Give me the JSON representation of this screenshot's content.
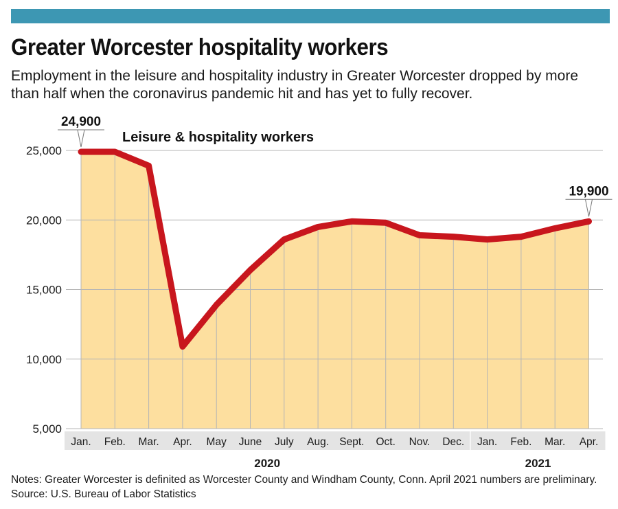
{
  "header": {
    "title": "Greater Worcester hospitality workers",
    "subtitle": "Employment in the leisure and hospitality industry in Greater Worcester dropped by more than half when the coronavirus pandemic hit and has yet to fully recover."
  },
  "colors": {
    "accent_bar": "#3d97b3",
    "line": "#c8161d",
    "area_fill": "#fddf9f",
    "grid": "#b5b5b5",
    "tick_band": "#e4e4e4"
  },
  "chart_data": {
    "type": "area",
    "title": "Greater Worcester hospitality workers",
    "categories": [
      "Jan.",
      "Feb.",
      "Mar.",
      "Apr.",
      "May",
      "June",
      "July",
      "Aug.",
      "Sept.",
      "Oct.",
      "Nov.",
      "Dec.",
      "Jan.",
      "Feb.",
      "Mar.",
      "Apr."
    ],
    "year_labels": [
      {
        "label": "2020",
        "start_index": 0,
        "end_index": 11
      },
      {
        "label": "2021",
        "start_index": 12,
        "end_index": 15
      }
    ],
    "series": [
      {
        "name": "Leisure & hospitality workers",
        "values": [
          24900,
          24900,
          23900,
          10900,
          13900,
          16400,
          18600,
          19500,
          19900,
          19800,
          18900,
          18800,
          18600,
          18800,
          19400,
          19900
        ]
      }
    ],
    "yticks": [
      5000,
      10000,
      15000,
      20000,
      25000
    ],
    "ytick_labels": [
      "5,000",
      "10,000",
      "15,000",
      "20,000",
      "25,000"
    ],
    "ylim": [
      5000,
      25000
    ],
    "grid": true,
    "annotations": [
      {
        "index": 0,
        "text": "24,900"
      },
      {
        "index": 15,
        "text": "19,900"
      }
    ]
  },
  "footer": {
    "notes": "Notes: Greater Worcester is definited as Worcester County and Windham County, Conn. April 2021 numbers are preliminary. Source: U.S. Bureau of Labor Statistics"
  }
}
